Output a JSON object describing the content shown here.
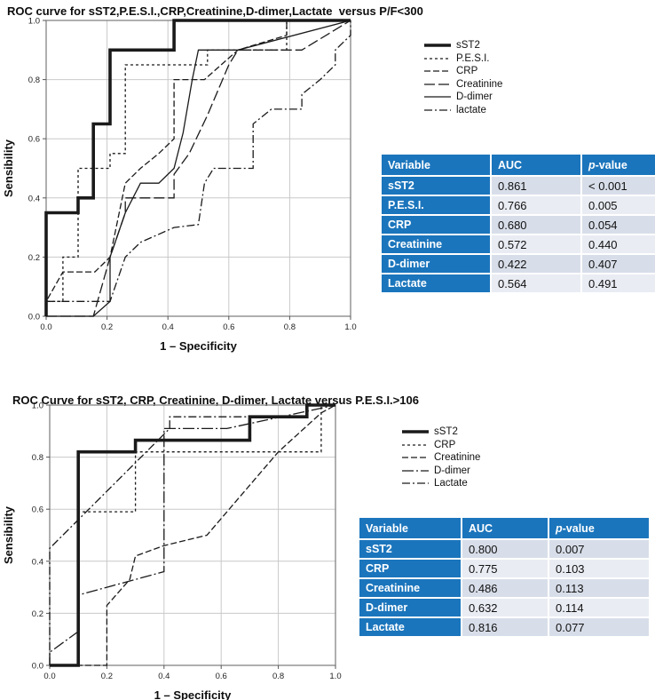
{
  "colors": {
    "table_blue": "#1b75bc",
    "row_dark": "#d8dee9",
    "row_light": "#e9ecf3",
    "curve": "#1a1a1a",
    "grid": "#c9c9c9"
  },
  "chart_data": [
    {
      "type": "line",
      "title": "ROC curve for sST2,P.E.S.I.,CRP,Creatinine,D-dimer,Lactate  versus P/F<300",
      "xlabel": "1 – Specificity",
      "ylabel": "Sensibility",
      "xlim": [
        0,
        1
      ],
      "ylim": [
        0,
        1
      ],
      "grid": true,
      "legend_position": "right",
      "x_ticks": [
        "0.0",
        "0.2",
        "0.4",
        "0.6",
        "0.8",
        "1.0"
      ],
      "y_ticks": [
        "0.0",
        "0.2",
        "0.4",
        "0.6",
        "0.8",
        "1.0"
      ],
      "series": [
        {
          "name": "sST2",
          "style": "solid-thick",
          "points": [
            [
              0,
              0
            ],
            [
              0,
              0.35
            ],
            [
              0.105,
              0.35
            ],
            [
              0.105,
              0.4
            ],
            [
              0.155,
              0.4
            ],
            [
              0.155,
              0.65
            ],
            [
              0.21,
              0.65
            ],
            [
              0.21,
              0.9
            ],
            [
              0.42,
              0.9
            ],
            [
              0.42,
              1
            ],
            [
              1,
              1
            ]
          ]
        },
        {
          "name": "P.E.S.I.",
          "style": "dash-fine",
          "points": [
            [
              0,
              0
            ],
            [
              0,
              0.05
            ],
            [
              0.055,
              0.05
            ],
            [
              0.055,
              0.2
            ],
            [
              0.105,
              0.2
            ],
            [
              0.105,
              0.5
            ],
            [
              0.21,
              0.5
            ],
            [
              0.21,
              0.55
            ],
            [
              0.26,
              0.55
            ],
            [
              0.26,
              0.85
            ],
            [
              0.53,
              0.85
            ],
            [
              0.53,
              0.9
            ],
            [
              0.79,
              0.9
            ],
            [
              0.79,
              1
            ],
            [
              1,
              1
            ]
          ]
        },
        {
          "name": "CRP",
          "style": "dash-medium",
          "points": [
            [
              0,
              0
            ],
            [
              0,
              0.05
            ],
            [
              0.055,
              0.15
            ],
            [
              0.16,
              0.15
            ],
            [
              0.21,
              0.2
            ],
            [
              0.26,
              0.45
            ],
            [
              0.31,
              0.5
            ],
            [
              0.37,
              0.55
            ],
            [
              0.42,
              0.6
            ],
            [
              0.42,
              0.8
            ],
            [
              0.52,
              0.8
            ],
            [
              0.63,
              0.9
            ],
            [
              0.79,
              0.95
            ],
            [
              0.79,
              1
            ],
            [
              1,
              1
            ]
          ]
        },
        {
          "name": "Creatinine",
          "style": "dash-long",
          "points": [
            [
              0,
              0
            ],
            [
              0.155,
              0
            ],
            [
              0.21,
              0.2
            ],
            [
              0.26,
              0.35
            ],
            [
              0.26,
              0.4
            ],
            [
              0.42,
              0.4
            ],
            [
              0.42,
              0.48
            ],
            [
              0.47,
              0.55
            ],
            [
              0.53,
              0.68
            ],
            [
              0.6,
              0.85
            ],
            [
              0.63,
              0.9
            ],
            [
              0.84,
              0.9
            ],
            [
              1,
              1
            ]
          ]
        },
        {
          "name": "D-dimer",
          "style": "solid",
          "points": [
            [
              0,
              0
            ],
            [
              0.155,
              0
            ],
            [
              0.21,
              0.05
            ],
            [
              0.21,
              0.2
            ],
            [
              0.26,
              0.35
            ],
            [
              0.31,
              0.45
            ],
            [
              0.37,
              0.45
            ],
            [
              0.42,
              0.5
            ],
            [
              0.45,
              0.62
            ],
            [
              0.48,
              0.8
            ],
            [
              0.5,
              0.9
            ],
            [
              0.63,
              0.9
            ],
            [
              1,
              1
            ]
          ]
        },
        {
          "name": "lactate",
          "style": "dash-dot",
          "points": [
            [
              0,
              0
            ],
            [
              0,
              0.05
            ],
            [
              0.21,
              0.05
            ],
            [
              0.26,
              0.2
            ],
            [
              0.31,
              0.25
            ],
            [
              0.42,
              0.3
            ],
            [
              0.5,
              0.31
            ],
            [
              0.52,
              0.45
            ],
            [
              0.55,
              0.5
            ],
            [
              0.68,
              0.5
            ],
            [
              0.68,
              0.65
            ],
            [
              0.74,
              0.7
            ],
            [
              0.84,
              0.7
            ],
            [
              0.84,
              0.75
            ],
            [
              0.9,
              0.8
            ],
            [
              0.95,
              0.85
            ],
            [
              0.95,
              0.9
            ],
            [
              1,
              0.95
            ],
            [
              1,
              1
            ]
          ]
        }
      ]
    },
    {
      "type": "line",
      "title": "ROC Curve for sST2, CRP, Creatinine, D-dimer, Lactate versus P.E.S.I.>106",
      "xlabel": "1 – Specificity",
      "ylabel": "Sensibility",
      "xlim": [
        0,
        1
      ],
      "ylim": [
        0,
        1
      ],
      "grid": true,
      "legend_position": "right",
      "x_ticks": [
        "0.0",
        "0.2",
        "0.4",
        "0.6",
        "0.8",
        "1.0"
      ],
      "y_ticks": [
        "0.0",
        "0.2",
        "0.4",
        "0.6",
        "0.8",
        "1.0"
      ],
      "series": [
        {
          "name": "sST2",
          "style": "solid-thick",
          "points": [
            [
              0,
              0
            ],
            [
              0.1,
              0
            ],
            [
              0.1,
              0.82
            ],
            [
              0.3,
              0.82
            ],
            [
              0.3,
              0.865
            ],
            [
              0.7,
              0.865
            ],
            [
              0.7,
              0.955
            ],
            [
              0.9,
              0.955
            ],
            [
              0.9,
              1
            ],
            [
              1,
              1
            ]
          ]
        },
        {
          "name": "CRP",
          "style": "dash-fine",
          "points": [
            [
              0,
              0
            ],
            [
              0.1,
              0
            ],
            [
              0.1,
              0.59
            ],
            [
              0.3,
              0.59
            ],
            [
              0.3,
              0.82
            ],
            [
              0.95,
              0.82
            ],
            [
              0.95,
              1
            ],
            [
              1,
              1
            ]
          ]
        },
        {
          "name": "Creatinine",
          "style": "dash-medium",
          "points": [
            [
              0,
              0
            ],
            [
              0.2,
              0
            ],
            [
              0.2,
              0.23
            ],
            [
              0.28,
              0.33
            ],
            [
              0.3,
              0.42
            ],
            [
              0.4,
              0.46
            ],
            [
              0.55,
              0.5
            ],
            [
              0.8,
              0.82
            ],
            [
              0.95,
              0.97
            ],
            [
              1,
              1
            ]
          ]
        },
        {
          "name": "D-dimer",
          "style": "dash-dot-long",
          "points": [
            [
              0,
              0
            ],
            [
              0,
              0.05
            ],
            [
              0.1,
              0.13
            ],
            [
              0.1,
              0.27
            ],
            [
              0.4,
              0.36
            ],
            [
              0.4,
              0.91
            ],
            [
              0.62,
              0.91
            ],
            [
              1,
              1
            ]
          ]
        },
        {
          "name": "Lactate",
          "style": "dash-dot",
          "points": [
            [
              0,
              0
            ],
            [
              0,
              0.45
            ],
            [
              0.42,
              0.91
            ],
            [
              0.42,
              0.955
            ],
            [
              0.9,
              0.955
            ],
            [
              0.9,
              1
            ],
            [
              1,
              1
            ]
          ]
        }
      ]
    }
  ],
  "tables": [
    {
      "headers": [
        "Variable",
        "AUC",
        "p-value"
      ],
      "rows": [
        [
          "sST2",
          "0.861",
          "< 0.001"
        ],
        [
          "P.E.S.I.",
          "0.766",
          "0.005"
        ],
        [
          "CRP",
          "0.680",
          "0.054"
        ],
        [
          "Creatinine",
          "0.572",
          "0.440"
        ],
        [
          "D-dimer",
          "0.422",
          "0.407"
        ],
        [
          "Lactate",
          "0.564",
          "0.491"
        ]
      ]
    },
    {
      "headers": [
        "Variable",
        "AUC",
        "p-value"
      ],
      "rows": [
        [
          "sST2",
          "0.800",
          "0.007"
        ],
        [
          "CRP",
          "0.775",
          "0.103"
        ],
        [
          "Creatinine",
          "0.486",
          "0.113"
        ],
        [
          "D-dimer",
          "0.632",
          "0.114"
        ],
        [
          "Lactate",
          "0.816",
          "0.077"
        ]
      ]
    }
  ]
}
